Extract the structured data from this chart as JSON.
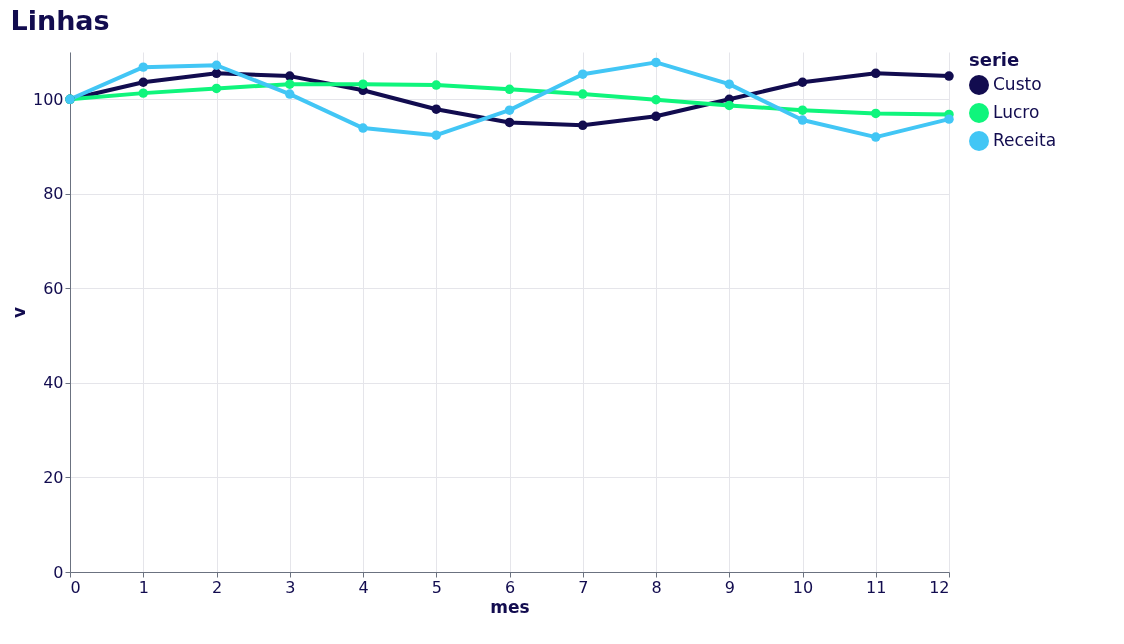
{
  "chart_data": {
    "type": "line",
    "title": "Linhas",
    "xlabel": "mes",
    "ylabel": "v",
    "legend_title": "serie",
    "x": [
      0,
      1,
      2,
      3,
      4,
      5,
      6,
      7,
      8,
      9,
      10,
      11,
      12
    ],
    "series": [
      {
        "name": "Custo",
        "color": "#120c4f",
        "values": [
          100,
          103.6,
          105.5,
          104.9,
          101.9,
          97.9,
          95.1,
          94.5,
          96.4,
          100,
          103.6,
          105.5,
          104.9
        ]
      },
      {
        "name": "Lucro",
        "color": "#0ff57c",
        "values": [
          100,
          101.3,
          102.3,
          103.2,
          103.2,
          103.0,
          102.1,
          101.1,
          99.9,
          98.7,
          97.7,
          97.0,
          96.8
        ]
      },
      {
        "name": "Receita",
        "color": "#42c6f5",
        "values": [
          100,
          106.8,
          107.2,
          101.1,
          93.9,
          92.4,
          97.7,
          105.3,
          107.8,
          103.2,
          95.6,
          92.0,
          95.8
        ]
      }
    ],
    "xlim": [
      0,
      12
    ],
    "xticks": [
      0,
      1,
      2,
      3,
      4,
      5,
      6,
      7,
      8,
      9,
      10,
      11,
      12
    ],
    "ylim": [
      0,
      110
    ],
    "yticks": [
      0,
      20,
      40,
      60,
      80,
      100
    ],
    "grid": true,
    "legend": "top right",
    "marker": "circle",
    "line_style": "solid"
  }
}
